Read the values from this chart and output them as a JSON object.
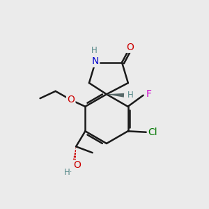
{
  "bg_color": "#ebebeb",
  "bond_color": "#1a1a1a",
  "bond_width": 1.8,
  "atom_colors": {
    "O": "#cc0000",
    "N": "#0000cc",
    "F": "#cc00cc",
    "Cl": "#007700",
    "H": "#558888",
    "C": "#1a1a1a"
  },
  "font_size": 10,
  "font_size_small": 8.5
}
